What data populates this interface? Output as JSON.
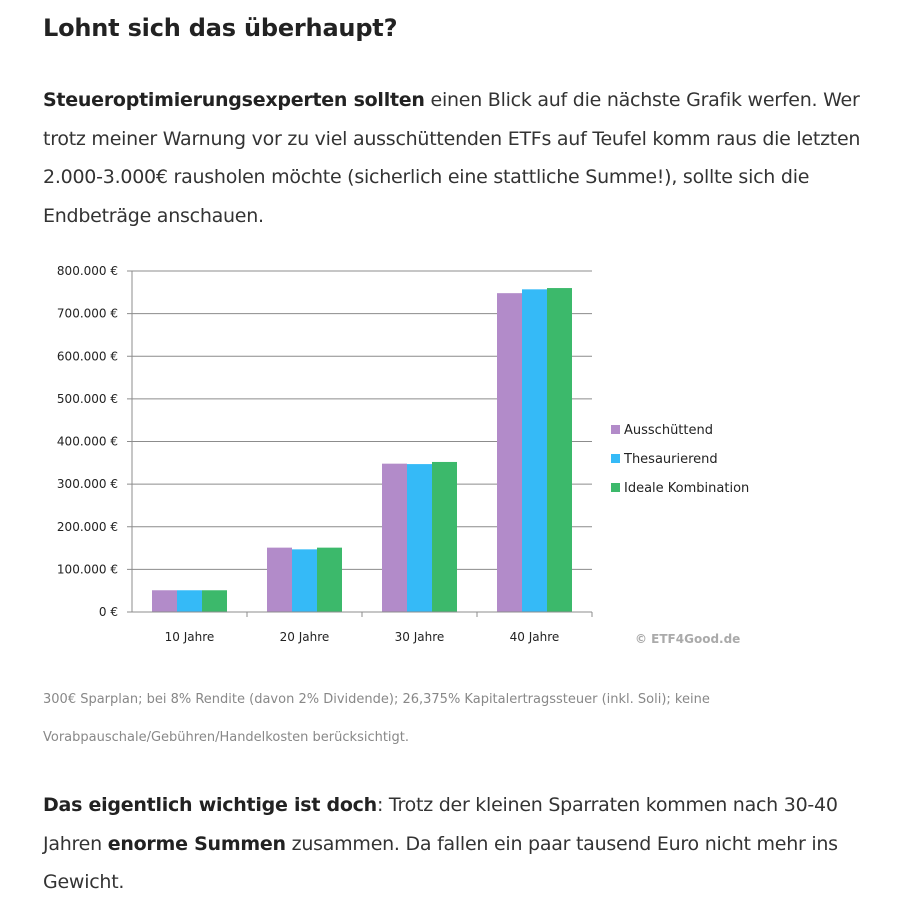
{
  "heading": "Lohnt sich das überhaupt?",
  "intro": {
    "bold": "Steueroptimierungsexperten sollten",
    "rest": " einen Blick auf die nächste Grafik werfen. Wer trotz meiner Warnung vor zu viel ausschüttenden ETFs auf Teufel komm raus die letzten 2.000-3.000€ rausholen möchte (sicherlich eine stattliche Summe!), sollte sich die Endbeträge anschauen."
  },
  "chart_data": {
    "type": "bar",
    "title": "",
    "xlabel": "",
    "ylabel": "",
    "categories": [
      "10 Jahre",
      "20 Jahre",
      "30 Jahre",
      "40 Jahre"
    ],
    "series": [
      {
        "name": "Ausschüttend",
        "color": "#b28bc9",
        "values": [
          51000,
          151000,
          348000,
          748000
        ]
      },
      {
        "name": "Thesaurierend",
        "color": "#35baf7",
        "values": [
          51000,
          147000,
          347000,
          757000
        ]
      },
      {
        "name": "Ideale Kombination",
        "color": "#3cb96b",
        "values": [
          51000,
          151000,
          352000,
          760000
        ]
      }
    ],
    "ylim": [
      0,
      800000
    ],
    "yticks": [
      0,
      100000,
      200000,
      300000,
      400000,
      500000,
      600000,
      700000,
      800000
    ],
    "ytick_labels": [
      "0 €",
      "100.000 €",
      "200.000 €",
      "300.000 €",
      "400.000 €",
      "500.000 €",
      "600.000 €",
      "700.000 €",
      "800.000 €"
    ],
    "grid": true,
    "legend_position": "right",
    "watermark": "© ETF4Good.de"
  },
  "caption": "300€ Sparplan; bei 8% Rendite (davon 2% Dividende); 26,375% Kapitalertragssteuer (inkl. Soli); keine Vorabpauschale/Gebühren/Handelkosten berücksichtigt.",
  "outro": {
    "bold1": "Das eigentlich wichtige ist doch",
    "text1": ": Trotz der kleinen Sparraten kommen nach 30-40 Jahren ",
    "bold2": "enorme Summen",
    "text2": " zusammen. Da fallen ein paar tausend Euro nicht mehr ins Gewicht."
  }
}
